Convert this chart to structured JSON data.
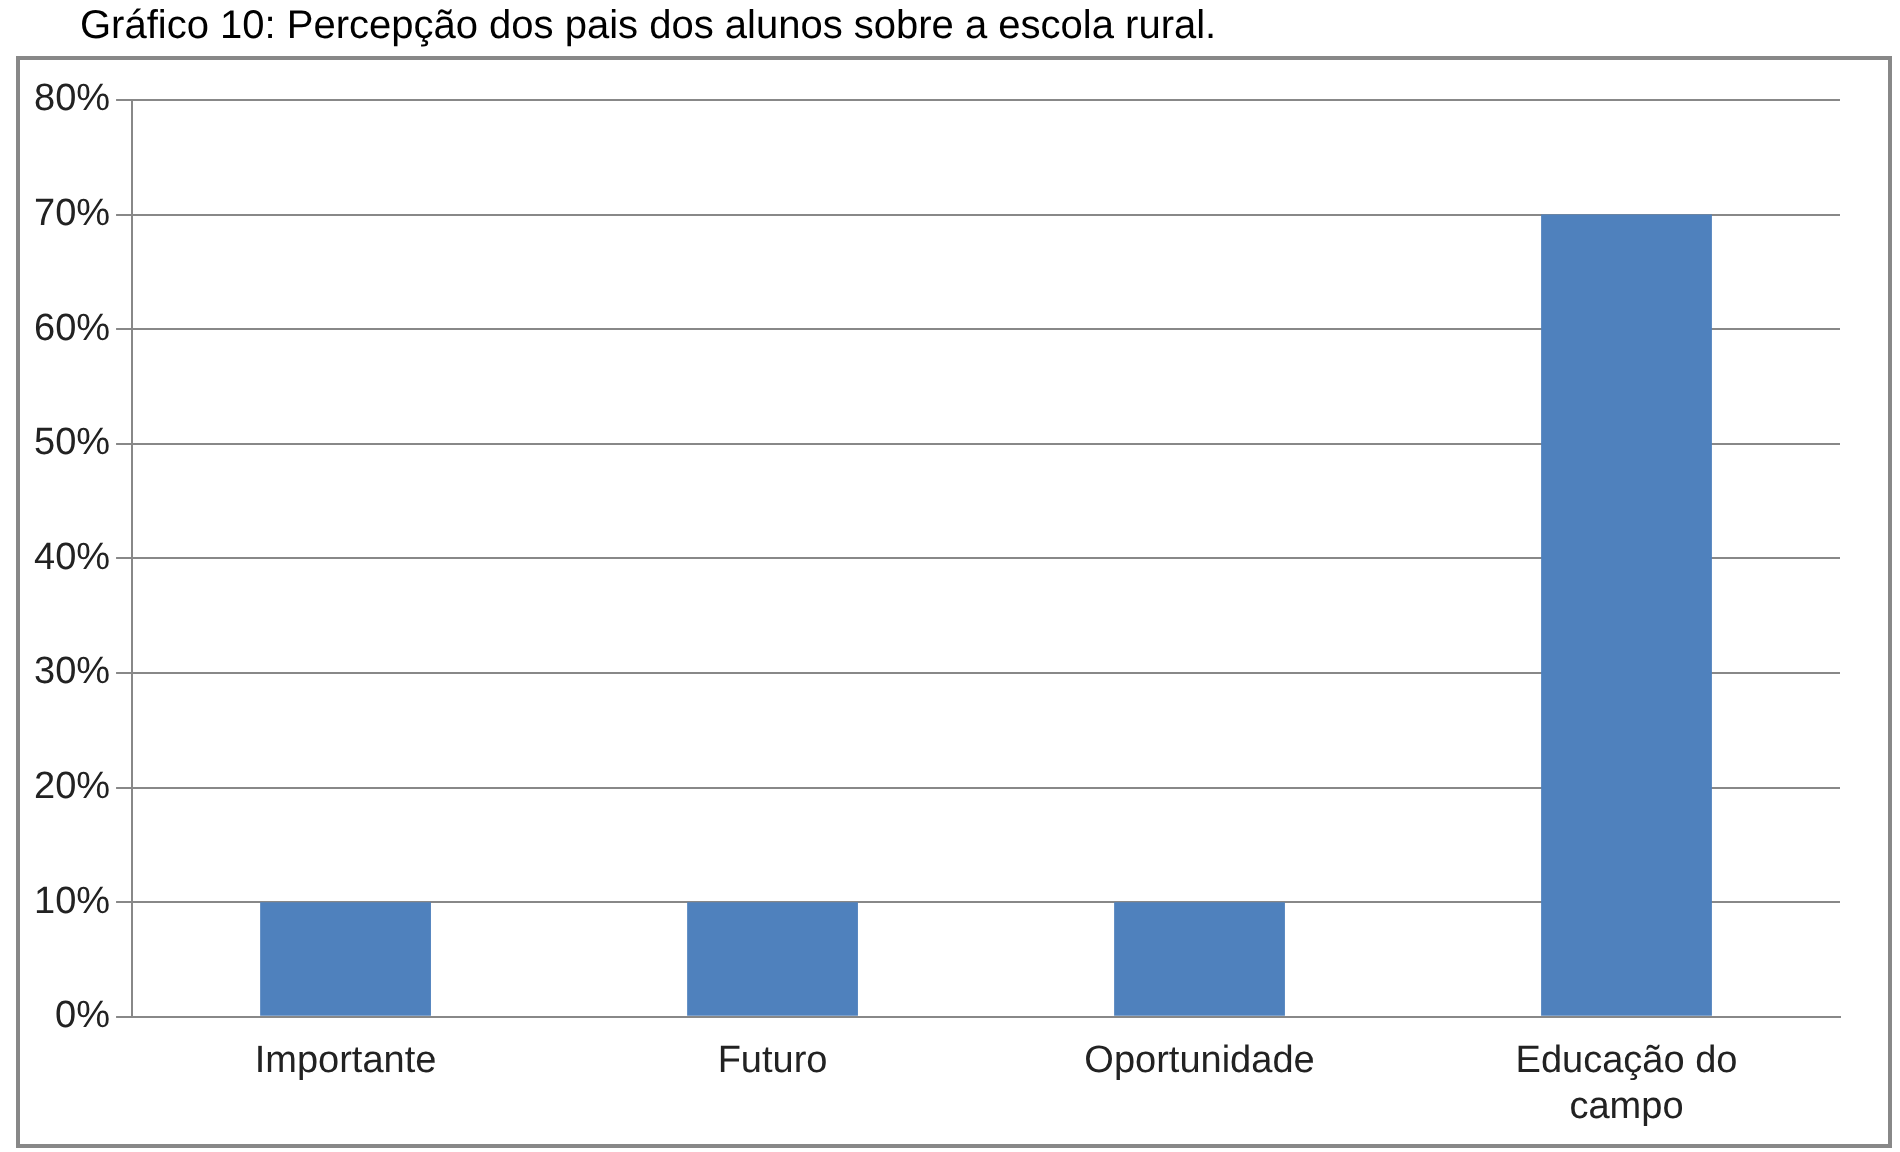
{
  "chart_data": {
    "type": "bar",
    "title": "Gráfico 10: Percepção dos pais dos alunos sobre a escola rural.",
    "categories": [
      "Importante",
      "Futuro",
      "Oportunidade",
      "Educação do campo"
    ],
    "values": [
      10,
      10,
      10,
      70
    ],
    "color": "#4f81bd",
    "ylim": [
      0,
      80
    ],
    "yticks": [
      {
        "value": 0,
        "label": "0%"
      },
      {
        "value": 10,
        "label": "10%"
      },
      {
        "value": 20,
        "label": "20%"
      },
      {
        "value": 30,
        "label": "30%"
      },
      {
        "value": 40,
        "label": "40%"
      },
      {
        "value": 50,
        "label": "50%"
      },
      {
        "value": 60,
        "label": "60%"
      },
      {
        "value": 70,
        "label": "70%"
      },
      {
        "value": 80,
        "label": "80%"
      }
    ],
    "grid": "y",
    "legend": false
  }
}
